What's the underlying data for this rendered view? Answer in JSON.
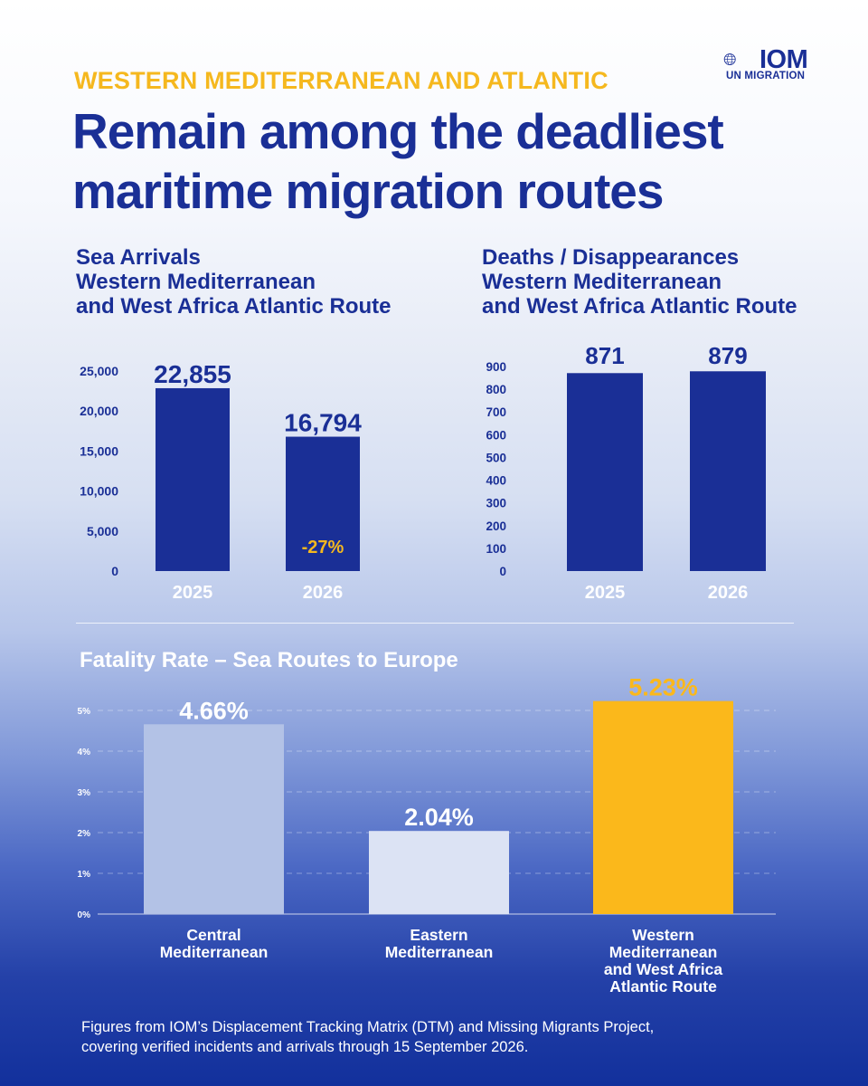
{
  "header": {
    "kicker": "WESTERN MEDITERRANEAN AND ATLANTIC",
    "headline_line1": "Remain among the deadliest",
    "headline_line2": "maritime migration routes",
    "logo_text": "IOM",
    "logo_sub": "UN MIGRATION"
  },
  "chart_data": [
    {
      "type": "bar",
      "title_lines": [
        "Sea Arrivals",
        "Western Mediterranean",
        "and West Africa Atlantic Route"
      ],
      "categories": [
        "2025",
        "2026"
      ],
      "values": [
        22855,
        16794
      ],
      "value_labels": [
        "22,855",
        "16,794"
      ],
      "yticks": [
        "0",
        "5,000",
        "10,000",
        "15,000",
        "20,000",
        "25,000"
      ],
      "ylim": [
        0,
        25000
      ],
      "annotation": "-27%",
      "bar_color": "#1a2f96",
      "annotation_color": "#f5b81e"
    },
    {
      "type": "bar",
      "title_lines": [
        "Deaths / Disappearances",
        "Western Mediterranean",
        "and West Africa Atlantic Route"
      ],
      "categories": [
        "2025",
        "2026"
      ],
      "values": [
        871,
        879
      ],
      "value_labels": [
        "871",
        "879"
      ],
      "yticks": [
        "0",
        "100",
        "200",
        "300",
        "400",
        "500",
        "600",
        "700",
        "800",
        "900"
      ],
      "ylim": [
        0,
        900
      ],
      "bar_color": "#1a2f96"
    },
    {
      "type": "bar",
      "title": "Fatality Rate – Sea Routes to Europe",
      "categories": [
        [
          "Central",
          "Mediterranean"
        ],
        [
          "Eastern",
          "Mediterranean"
        ],
        [
          "Western",
          "Mediterranean",
          "and West Africa",
          "Atlantic Route"
        ]
      ],
      "values": [
        4.66,
        2.04,
        5.23
      ],
      "value_labels": [
        "4.66%",
        "2.04%",
        "5.23%"
      ],
      "yticks": [
        "0%",
        "1%",
        "2%",
        "3%",
        "4%",
        "5%"
      ],
      "ylim": [
        0,
        5
      ],
      "grid": true,
      "bar_colors": [
        "#b3c2e6",
        "#dce3f4",
        "#fbb81b"
      ],
      "label_colors": [
        "#ffffff",
        "#ffffff",
        "#fbb81b"
      ]
    }
  ],
  "footer": {
    "line1": "Figures from IOM’s Displacement Tracking Matrix (DTM) and Missing Migrants Project,",
    "line2": "covering verified incidents and arrivals through 15 September 2026."
  }
}
